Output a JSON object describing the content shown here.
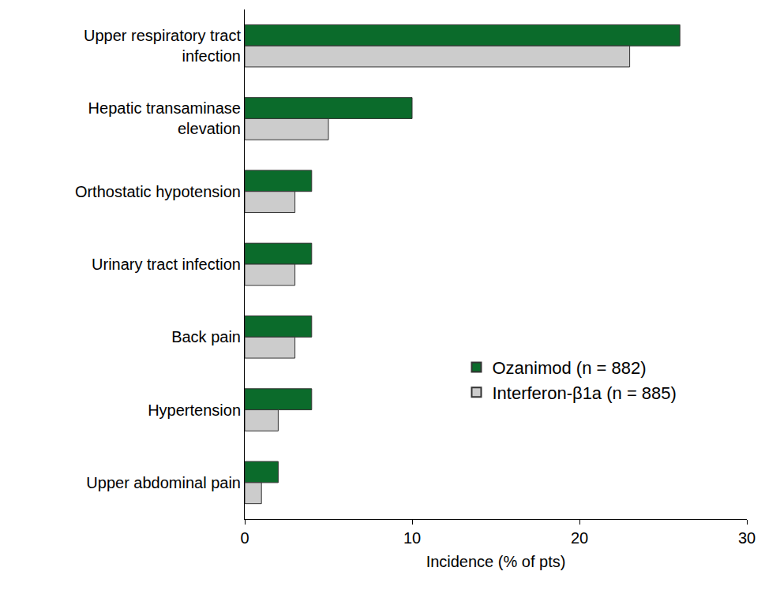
{
  "chart_data": {
    "type": "bar",
    "orientation": "horizontal",
    "categories": [
      "Upper respiratory tract infection",
      "Hepatic transaminase elevation",
      "Orthostatic hypotension",
      "Urinary tract infection",
      "Back pain",
      "Hypertension",
      "Upper abdominal pain"
    ],
    "series": [
      {
        "name": "Ozanimod (n = 882)",
        "color": "#0b6b2b",
        "values": [
          26,
          10,
          4,
          4,
          4,
          4,
          2
        ]
      },
      {
        "name": "Interferon-β1a (n = 885)",
        "color": "#cccccc",
        "values": [
          23,
          5,
          3,
          3,
          3,
          2,
          1
        ]
      }
    ],
    "x_label": "Incidence (% of pts)",
    "xlim": [
      0,
      30
    ],
    "xticks": [
      0,
      10,
      20,
      30
    ],
    "grid": false,
    "legend": "lower right"
  }
}
